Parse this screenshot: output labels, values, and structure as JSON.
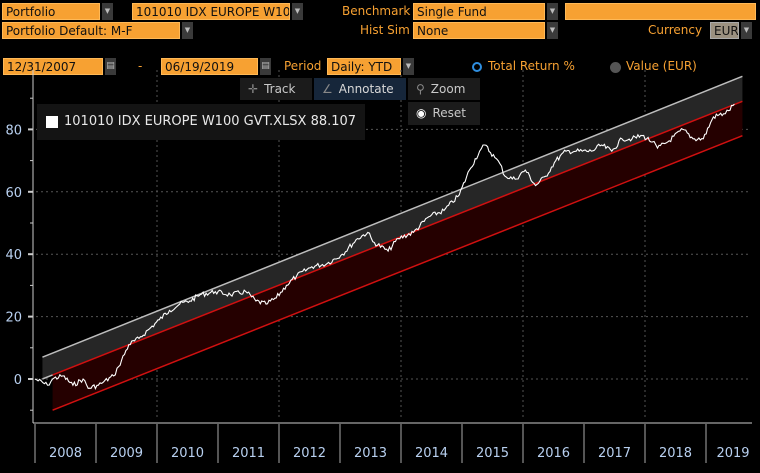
{
  "header": {
    "portfolio_label": "Portfolio",
    "portfolio_name": "101010 IDX EUROPE W10",
    "benchmark_label": "Benchmark",
    "benchmark_value": "Single Fund",
    "benchmark_extra": "",
    "portfolio_default": "Portfolio Default: M-F",
    "hist_sim_label": "Hist Sim",
    "hist_sim_value": "None",
    "currency_label": "Currency",
    "currency_value": "EUR",
    "start_date": "12/31/2007",
    "date_separator": "-",
    "end_date": "06/19/2019",
    "period_label": "Period",
    "period_value": "Daily: YTD",
    "mode_total_return": "Total Return %",
    "mode_value": "Value (EUR)",
    "selected_mode": "Total Return %"
  },
  "toolbar": {
    "track": "Track",
    "annotate": "Annotate",
    "zoom": "Zoom",
    "reset": "Reset",
    "active": "Annotate"
  },
  "colors": {
    "accent_orange": "#f7a132",
    "series": "#ffffff",
    "upper_band": "#2a2a2a",
    "lower_band": "#2a0000",
    "lower_band_line": "#d01010",
    "radio_selected": "#2f8fe0"
  },
  "chart_data": {
    "type": "line",
    "legend": {
      "name": "101010 IDX EUROPE W100 GVT.XLSX",
      "last_value": "88.107",
      "placement": "top-left"
    },
    "y_ticks": [
      "0",
      "20",
      "40",
      "60",
      "80"
    ],
    "ylim": [
      -14,
      92
    ],
    "x_ticks": [
      "2008",
      "2009",
      "2010",
      "2011",
      "2012",
      "2013",
      "2014",
      "2015",
      "2016",
      "2017",
      "2018",
      "2019"
    ],
    "xlim": [
      "2008-01-01",
      "2019-06-19"
    ],
    "grid": true,
    "series": [
      {
        "name": "101010 IDX EUROPE W100 GVT.XLSX",
        "points": [
          [
            "2007-12-31",
            0
          ],
          [
            "2008-03",
            -2
          ],
          [
            "2008-04",
            0
          ],
          [
            "2008-06",
            1
          ],
          [
            "2008-08",
            -2
          ],
          [
            "2008-10",
            0
          ],
          [
            "2008-11",
            -3
          ],
          [
            "2009-01",
            -2
          ],
          [
            "2009-02",
            -1
          ],
          [
            "2009-04",
            1
          ],
          [
            "2009-05",
            4
          ],
          [
            "2009-07",
            11
          ],
          [
            "2009-09",
            13
          ],
          [
            "2009-11",
            16
          ],
          [
            "2010-01",
            19
          ],
          [
            "2010-03",
            22
          ],
          [
            "2010-05",
            24
          ],
          [
            "2010-07",
            25
          ],
          [
            "2010-09",
            27
          ],
          [
            "2010-12",
            28
          ],
          [
            "2011-03",
            27
          ],
          [
            "2011-06",
            28
          ],
          [
            "2011-08",
            25
          ],
          [
            "2011-10",
            24
          ],
          [
            "2011-12",
            26
          ],
          [
            "2012-02",
            30
          ],
          [
            "2012-04",
            33
          ],
          [
            "2012-07",
            36
          ],
          [
            "2012-10",
            37
          ],
          [
            "2013-01",
            40
          ],
          [
            "2013-04",
            45
          ],
          [
            "2013-06",
            47
          ],
          [
            "2013-07",
            44
          ],
          [
            "2013-10",
            41
          ],
          [
            "2013-12",
            45
          ],
          [
            "2014-03",
            47
          ],
          [
            "2014-06",
            52
          ],
          [
            "2014-09",
            54
          ],
          [
            "2014-12",
            59
          ],
          [
            "2015-02",
            67
          ],
          [
            "2015-04",
            73
          ],
          [
            "2015-05",
            75
          ],
          [
            "2015-07",
            71
          ],
          [
            "2015-08",
            69
          ],
          [
            "2015-09",
            65
          ],
          [
            "2015-11",
            64
          ],
          [
            "2016-01",
            67
          ],
          [
            "2016-03",
            62
          ],
          [
            "2016-05",
            65
          ],
          [
            "2016-07",
            70
          ],
          [
            "2016-09",
            73
          ],
          [
            "2016-11",
            73
          ],
          [
            "2017-02",
            73
          ],
          [
            "2017-04",
            75
          ],
          [
            "2017-06",
            73
          ],
          [
            "2017-08",
            77
          ],
          [
            "2017-10",
            77
          ],
          [
            "2017-12",
            78
          ],
          [
            "2018-02",
            76
          ],
          [
            "2018-03",
            74
          ],
          [
            "2018-05",
            76
          ],
          [
            "2018-08",
            80
          ],
          [
            "2018-10",
            77
          ],
          [
            "2018-12",
            77
          ],
          [
            "2019-02",
            84
          ],
          [
            "2019-04",
            85
          ],
          [
            "2019-05",
            86
          ],
          [
            "2019-06-19",
            88.107
          ]
        ]
      }
    ],
    "trend_bands": {
      "upper": {
        "start": [
          "2008-02",
          7
        ],
        "end": [
          "2019-06-19",
          97
        ]
      },
      "middle": {
        "start": [
          "2008-02",
          0
        ],
        "end": [
          "2019-06-19",
          89
        ]
      },
      "lower": {
        "start": [
          "2008-04",
          -10
        ],
        "end": [
          "2019-06-19",
          78
        ]
      }
    }
  }
}
